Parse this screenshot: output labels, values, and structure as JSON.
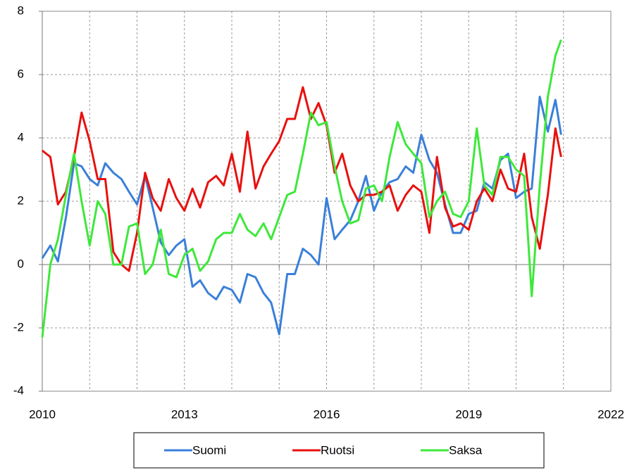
{
  "chart_data": {
    "type": "line",
    "x": [
      2010,
      2010.17,
      2010.33,
      2010.5,
      2010.67,
      2010.83,
      2011,
      2011.17,
      2011.33,
      2011.5,
      2011.67,
      2011.83,
      2012,
      2012.17,
      2012.33,
      2012.5,
      2012.67,
      2012.83,
      2013,
      2013.17,
      2013.33,
      2013.5,
      2013.67,
      2013.83,
      2014,
      2014.17,
      2014.33,
      2014.5,
      2014.67,
      2014.83,
      2015,
      2015.17,
      2015.33,
      2015.5,
      2015.67,
      2015.83,
      2016,
      2016.17,
      2016.33,
      2016.5,
      2016.67,
      2016.83,
      2017,
      2017.17,
      2017.33,
      2017.5,
      2017.67,
      2017.83,
      2018,
      2018.17,
      2018.33,
      2018.5,
      2018.67,
      2018.83,
      2019,
      2019.17,
      2019.33,
      2019.5,
      2019.67,
      2019.83,
      2020,
      2020.17,
      2020.33,
      2020.5,
      2020.67,
      2020.83,
      2020.95
    ],
    "series": [
      {
        "name": "Suomi",
        "color": "#3a7fd9",
        "values": [
          0.2,
          0.6,
          0.1,
          1.5,
          3.2,
          3.1,
          2.7,
          2.5,
          3.2,
          2.9,
          2.7,
          2.3,
          1.9,
          2.8,
          1.8,
          0.7,
          0.3,
          0.6,
          0.8,
          -0.7,
          -0.5,
          -0.9,
          -1.1,
          -0.7,
          -0.8,
          -1.2,
          -0.3,
          -0.4,
          -0.9,
          -1.2,
          -2.2,
          -0.3,
          -0.3,
          0.5,
          0.3,
          0.0,
          2.1,
          0.8,
          1.1,
          1.4,
          2.0,
          2.8,
          1.7,
          2.3,
          2.6,
          2.7,
          3.1,
          2.9,
          4.1,
          3.3,
          2.9,
          1.9,
          1.0,
          1.0,
          1.6,
          1.7,
          2.6,
          2.4,
          3.3,
          3.5,
          2.1,
          2.3,
          2.4,
          5.3,
          4.2,
          5.2,
          4.1
        ]
      },
      {
        "name": "Ruotsi",
        "color": "#e8100e",
        "values": [
          3.6,
          3.4,
          1.9,
          2.3,
          3.4,
          4.8,
          3.9,
          2.7,
          2.7,
          0.4,
          0.0,
          -0.2,
          1.0,
          2.9,
          2.1,
          1.7,
          2.7,
          2.1,
          1.7,
          2.4,
          1.8,
          2.6,
          2.8,
          2.5,
          3.5,
          2.3,
          4.2,
          2.4,
          3.1,
          3.5,
          3.9,
          4.6,
          4.6,
          5.6,
          4.6,
          5.1,
          4.4,
          2.9,
          3.5,
          2.5,
          2.0,
          2.2,
          2.2,
          2.3,
          2.5,
          1.7,
          2.2,
          2.5,
          2.3,
          1.0,
          3.4,
          1.8,
          1.2,
          1.3,
          1.1,
          2.0,
          2.4,
          2.0,
          3.0,
          2.4,
          2.3,
          3.5,
          1.5,
          0.5,
          2.2,
          4.3,
          3.4
        ]
      },
      {
        "name": "Saksa",
        "color": "#3ee83a",
        "values": [
          -2.3,
          0.0,
          0.8,
          2.2,
          3.5,
          2.0,
          0.6,
          2.0,
          1.6,
          0.0,
          0.0,
          1.2,
          1.3,
          -0.3,
          0.0,
          1.1,
          -0.3,
          -0.4,
          0.3,
          0.5,
          -0.2,
          0.1,
          0.8,
          1.0,
          1.0,
          1.6,
          1.1,
          0.9,
          1.3,
          0.8,
          1.5,
          2.2,
          2.3,
          3.5,
          4.8,
          4.4,
          4.5,
          3.1,
          2.0,
          1.3,
          1.4,
          2.4,
          2.5,
          2.0,
          3.4,
          4.5,
          3.8,
          3.5,
          3.2,
          1.5,
          2.0,
          2.3,
          1.6,
          1.5,
          2.0,
          4.3,
          2.5,
          2.2,
          3.4,
          3.4,
          3.0,
          2.8,
          -1.0,
          2.5,
          5.3,
          6.6,
          7.1
        ]
      }
    ],
    "xlim": [
      2010,
      2022
    ],
    "xticks": [
      2010,
      2013,
      2016,
      2019,
      2022
    ],
    "x_grid": [
      2011,
      2012,
      2013,
      2014,
      2015,
      2016,
      2017,
      2018,
      2019,
      2020,
      2021
    ],
    "ylim": [
      -4,
      8
    ],
    "yticks": [
      -4,
      -2,
      0,
      2,
      4,
      6,
      8
    ],
    "grid": true,
    "legend": "bottom"
  }
}
